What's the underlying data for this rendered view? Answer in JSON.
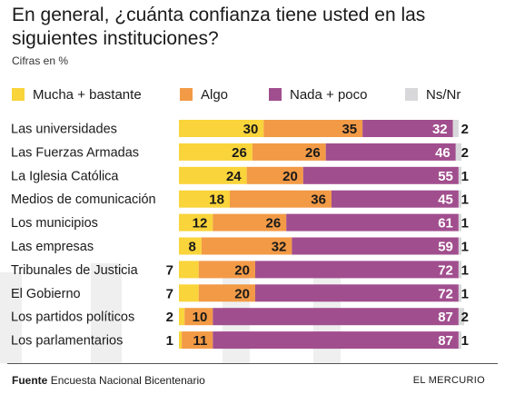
{
  "header": {
    "title": "En general, ¿cuánta confianza tiene usted en las siguientes instituciones?",
    "subtitle": "Cifras en %"
  },
  "legend": [
    {
      "label": "Mucha + bastante",
      "color": "#F9D43A"
    },
    {
      "label": "Algo",
      "color": "#F29A46"
    },
    {
      "label": "Nada + poco",
      "color": "#A14E8E"
    },
    {
      "label": "Ns/Nr",
      "color": "#D8D8DA"
    }
  ],
  "chart_data": {
    "type": "bar",
    "stacked": true,
    "orientation": "horizontal",
    "unit": "%",
    "categories": [
      "Las universidades",
      "Las Fuerzas Armadas",
      "La Iglesia Católica",
      "Medios de comunicación",
      "Los municipios",
      "Las empresas",
      "Tribunales de Justicia",
      "El Gobierno",
      "Los partidos políticos",
      "Los parlamentarios"
    ],
    "series": [
      {
        "name": "Mucha + bastante",
        "color": "#F9D43A",
        "values": [
          30,
          26,
          24,
          18,
          12,
          8,
          7,
          7,
          2,
          1
        ]
      },
      {
        "name": "Algo",
        "color": "#F29A46",
        "values": [
          35,
          26,
          20,
          36,
          26,
          32,
          20,
          20,
          10,
          11
        ]
      },
      {
        "name": "Nada + poco",
        "color": "#A14E8E",
        "values": [
          32,
          46,
          55,
          45,
          61,
          59,
          72,
          72,
          87,
          87
        ]
      },
      {
        "name": "Ns/Nr",
        "color": "#D8D8DA",
        "values": [
          2,
          2,
          1,
          1,
          1,
          1,
          1,
          1,
          2,
          1
        ]
      }
    ],
    "xlim": [
      0,
      100
    ],
    "grid": false,
    "legend_position": "top"
  },
  "footer": {
    "source_label": "Fuente",
    "source_text": "Encuesta Nacional Bicentenario",
    "brand": "EL MERCURIO"
  }
}
